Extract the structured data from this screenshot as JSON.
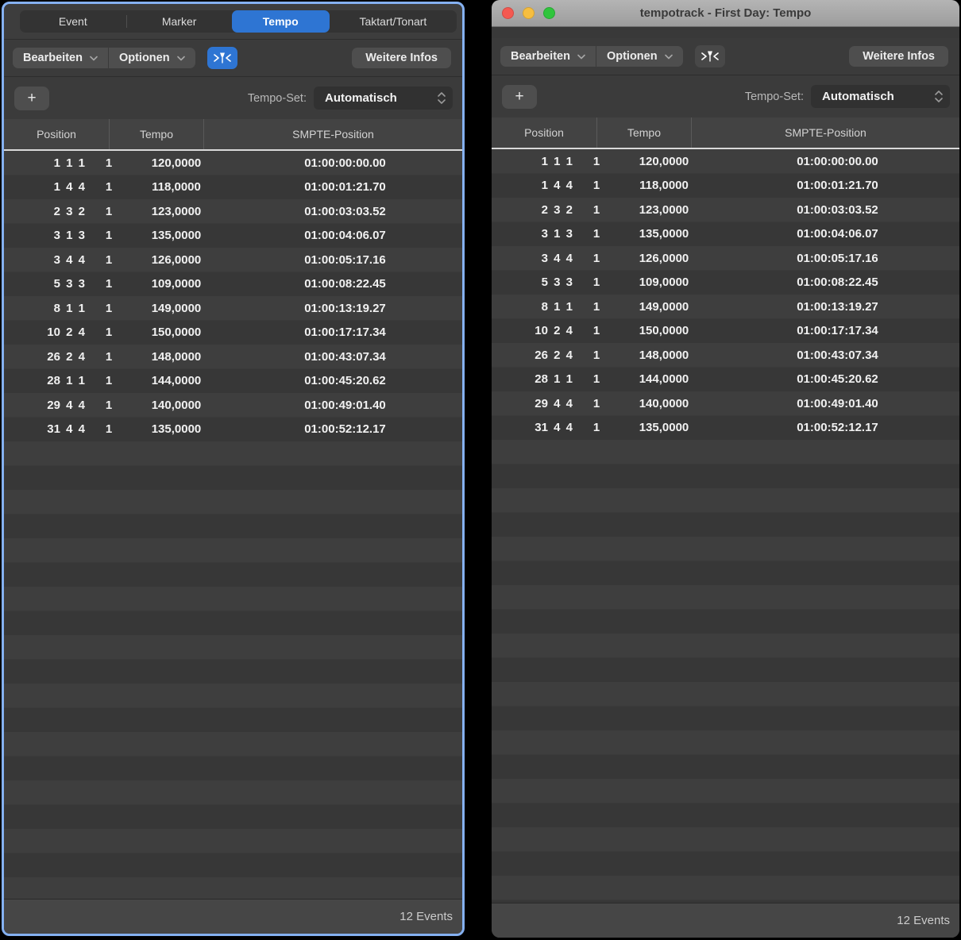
{
  "window": {
    "title": "tempotrack - First Day: Tempo"
  },
  "tabs": [
    {
      "label": "Event",
      "selected": false
    },
    {
      "label": "Marker",
      "selected": false
    },
    {
      "label": "Tempo",
      "selected": true
    },
    {
      "label": "Taktart/Tonart",
      "selected": false
    }
  ],
  "toolbar": {
    "edit_label": "Bearbeiten",
    "options_label": "Optionen",
    "midi_in_icon": "midi-in-icon",
    "more_info_label": "Weitere Infos",
    "add_label": "+",
    "tempo_set_label": "Tempo-Set:",
    "tempo_set_value": "Automatisch"
  },
  "table": {
    "headers": [
      "Position",
      "Tempo",
      "SMPTE-Position"
    ],
    "rows": [
      {
        "position": "1 1 1",
        "tick": "1",
        "tempo": "120,0000",
        "smpte": "01:00:00:00.00"
      },
      {
        "position": "1 4 4",
        "tick": "1",
        "tempo": "118,0000",
        "smpte": "01:00:01:21.70"
      },
      {
        "position": "2 3 2",
        "tick": "1",
        "tempo": "123,0000",
        "smpte": "01:00:03:03.52"
      },
      {
        "position": "3 1 3",
        "tick": "1",
        "tempo": "135,0000",
        "smpte": "01:00:04:06.07"
      },
      {
        "position": "3 4 4",
        "tick": "1",
        "tempo": "126,0000",
        "smpte": "01:00:05:17.16"
      },
      {
        "position": "5 3 3",
        "tick": "1",
        "tempo": "109,0000",
        "smpte": "01:00:08:22.45"
      },
      {
        "position": "8 1 1",
        "tick": "1",
        "tempo": "149,0000",
        "smpte": "01:00:13:19.27"
      },
      {
        "position": "10 2 4",
        "tick": "1",
        "tempo": "150,0000",
        "smpte": "01:00:17:17.34"
      },
      {
        "position": "26 2 4",
        "tick": "1",
        "tempo": "148,0000",
        "smpte": "01:00:43:07.34"
      },
      {
        "position": "28 1 1",
        "tick": "1",
        "tempo": "144,0000",
        "smpte": "01:00:45:20.62"
      },
      {
        "position": "29 4 4",
        "tick": "1",
        "tempo": "140,0000",
        "smpte": "01:00:49:01.40"
      },
      {
        "position": "31 4 4",
        "tick": "1",
        "tempo": "135,0000",
        "smpte": "01:00:52:12.17"
      }
    ]
  },
  "footer": {
    "events_count": "12 Events"
  },
  "colors": {
    "accent_blue": "#2e75d3",
    "focus_ring": "#85b1f2",
    "traffic_red": "#f45951",
    "traffic_yellow": "#f6be40",
    "traffic_green": "#30c53d"
  }
}
